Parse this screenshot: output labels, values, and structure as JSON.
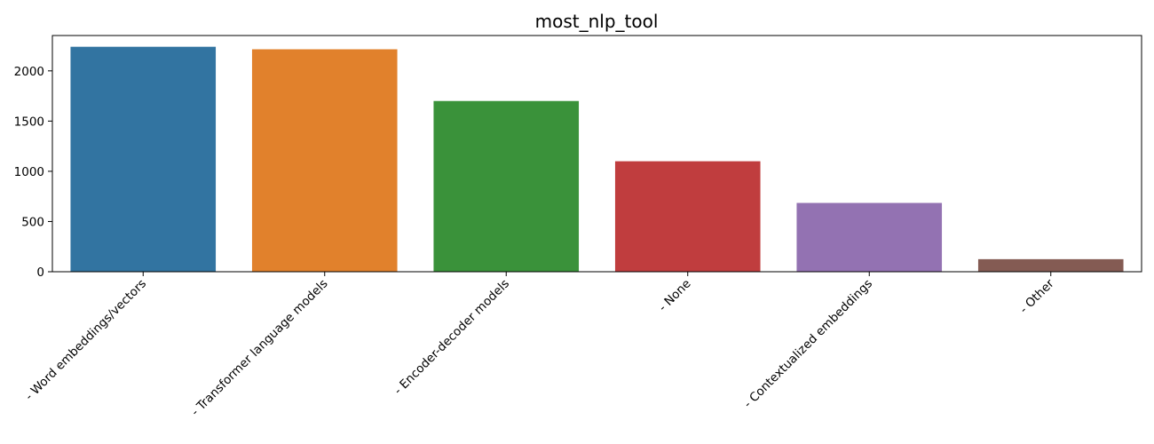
{
  "chart_data": {
    "type": "bar",
    "title": "most_nlp_tool",
    "xlabel": "",
    "ylabel": "",
    "categories": [
      "- Word embeddings/vectors",
      "- Transformer language models",
      "- Encoder-decoder models",
      "- None",
      "- Contextualized embeddings",
      "- Other"
    ],
    "values": [
      2240,
      2215,
      1700,
      1100,
      685,
      125
    ],
    "colors": [
      "#3274a1",
      "#e1812c",
      "#3a923a",
      "#c03d3e",
      "#9372b2",
      "#845b53"
    ],
    "ylim": [
      0,
      2352
    ],
    "yticks": [
      0,
      500,
      1000,
      1500,
      2000
    ],
    "grid": false,
    "legend": "none"
  }
}
